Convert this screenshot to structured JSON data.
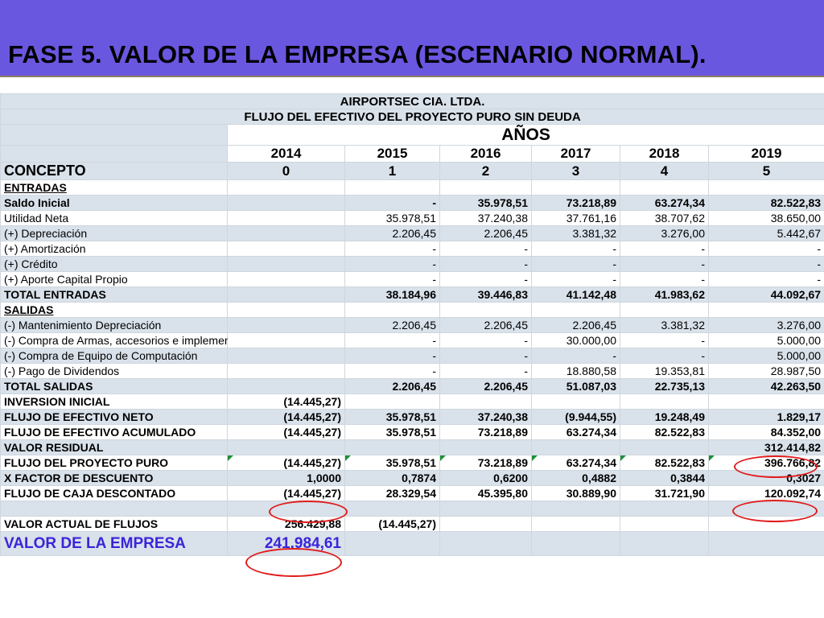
{
  "title": "FASE 5.  VALOR DE LA EMPRESA (ESCENARIO NORMAL).",
  "company": "AIRPORTSEC CIA. LTDA.",
  "subtitle": "FLUJO DEL EFECTIVO DEL PROYECTO PURO SIN DEUDA",
  "anos_label": "AÑOS",
  "years": [
    "2014",
    "2015",
    "2016",
    "2017",
    "2018",
    "2019"
  ],
  "concepto_label": "CONCEPTO",
  "periods": [
    "0",
    "1",
    "2",
    "3",
    "4",
    "5"
  ],
  "rows": [
    {
      "label": "ENTRADAS",
      "values": [
        "",
        "",
        "",
        "",
        "",
        ""
      ]
    },
    {
      "label": "Saldo Inicial",
      "values": [
        "",
        "-",
        "35.978,51",
        "73.218,89",
        "63.274,34",
        "82.522,83"
      ]
    },
    {
      "label": "Utilidad Neta",
      "values": [
        "",
        "35.978,51",
        "37.240,38",
        "37.761,16",
        "38.707,62",
        "38.650,00"
      ]
    },
    {
      "label": "(+) Depreciación",
      "values": [
        "",
        "2.206,45",
        "2.206,45",
        "3.381,32",
        "3.276,00",
        "5.442,67"
      ]
    },
    {
      "label": "(+) Amortización",
      "values": [
        "",
        "-",
        "-",
        "-",
        "-",
        "-"
      ]
    },
    {
      "label": "(+) Crédito",
      "values": [
        "",
        "-",
        "-",
        "-",
        "-",
        "-"
      ]
    },
    {
      "label": "(+) Aporte Capital Propio",
      "values": [
        "",
        "-",
        "-",
        "-",
        "-",
        "-"
      ]
    },
    {
      "label": "TOTAL ENTRADAS",
      "values": [
        "",
        "38.184,96",
        "39.446,83",
        "41.142,48",
        "41.983,62",
        "44.092,67"
      ]
    },
    {
      "label": "SALIDAS",
      "values": [
        "",
        "",
        "",
        "",
        "",
        ""
      ]
    },
    {
      "label": "(-) Mantenimiento Depreciación",
      "values": [
        "",
        "2.206,45",
        "2.206,45",
        "2.206,45",
        "3.381,32",
        "3.276,00"
      ]
    },
    {
      "label": "(-) Compra  de Armas, accesorios e implementos de segurida",
      "values": [
        "",
        "-",
        "-",
        "30.000,00",
        "-",
        "5.000,00"
      ]
    },
    {
      "label": "(-) Compra de Equipo de Computación",
      "values": [
        "",
        "-",
        "-",
        "-",
        "-",
        "5.000,00"
      ]
    },
    {
      "label": "(-) Pago de Dividendos",
      "values": [
        "",
        "-",
        "-",
        "18.880,58",
        "19.353,81",
        "28.987,50"
      ]
    },
    {
      "label": "TOTAL SALIDAS",
      "values": [
        "",
        "2.206,45",
        "2.206,45",
        "51.087,03",
        "22.735,13",
        "42.263,50"
      ]
    },
    {
      "label": "INVERSION INICIAL",
      "values": [
        "(14.445,27)",
        "",
        "",
        "",
        "",
        ""
      ]
    },
    {
      "label": "FLUJO DE EFECTIVO NETO",
      "values": [
        "(14.445,27)",
        "35.978,51",
        "37.240,38",
        "(9.944,55)",
        "19.248,49",
        "1.829,17"
      ]
    },
    {
      "label": "FLUJO DE EFECTIVO ACUMULADO",
      "values": [
        "(14.445,27)",
        "35.978,51",
        "73.218,89",
        "63.274,34",
        "82.522,83",
        "84.352,00"
      ]
    },
    {
      "label": "VALOR RESIDUAL",
      "values": [
        "",
        "",
        "",
        "",
        "",
        "312.414,82"
      ]
    },
    {
      "label": "FLUJO DEL PROYECTO PURO",
      "values": [
        "(14.445,27)",
        "35.978,51",
        "73.218,89",
        "63.274,34",
        "82.522,83",
        "396.766,82"
      ]
    },
    {
      "label": "X FACTOR DE DESCUENTO",
      "values": [
        "1,0000",
        "0,7874",
        "0,6200",
        "0,4882",
        "0,3844",
        "0,3027"
      ]
    },
    {
      "label": "FLUJO DE CAJA DESCONTADO",
      "values": [
        "(14.445,27)",
        "28.329,54",
        "45.395,80",
        "30.889,90",
        "31.721,90",
        "120.092,74"
      ]
    }
  ],
  "valor_actual": {
    "label": "VALOR ACTUAL DE FLUJOS",
    "value": "256.429,88",
    "value2": "(14.445,27)"
  },
  "valor_empresa": {
    "label": "VALOR DE LA EMPRESA",
    "value": "241.984,61"
  },
  "colors": {
    "title_band": "#6a57e0",
    "row_shade": "#d9e1ea",
    "highlight_circle": "#e01b1b",
    "emphasis_text": "#3b24d9",
    "marker": "#1d8f3a"
  }
}
